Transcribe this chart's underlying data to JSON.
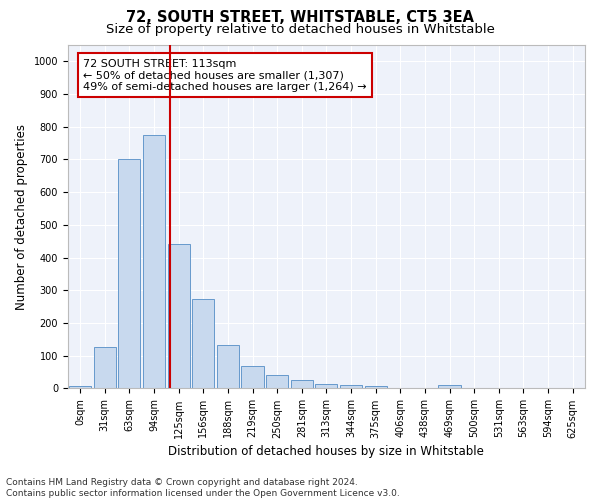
{
  "title": "72, SOUTH STREET, WHITSTABLE, CT5 3EA",
  "subtitle": "Size of property relative to detached houses in Whitstable",
  "xlabel": "Distribution of detached houses by size in Whitstable",
  "ylabel": "Number of detached properties",
  "bar_color": "#c8d9ee",
  "bar_edge_color": "#6699cc",
  "background_color": "#eef2fa",
  "grid_color": "#ffffff",
  "categories": [
    "0sqm",
    "31sqm",
    "63sqm",
    "94sqm",
    "125sqm",
    "156sqm",
    "188sqm",
    "219sqm",
    "250sqm",
    "281sqm",
    "313sqm",
    "344sqm",
    "375sqm",
    "406sqm",
    "438sqm",
    "469sqm",
    "500sqm",
    "531sqm",
    "563sqm",
    "594sqm",
    "625sqm"
  ],
  "values": [
    8,
    128,
    700,
    775,
    442,
    275,
    133,
    68,
    40,
    25,
    13,
    12,
    8,
    0,
    0,
    10,
    0,
    0,
    0,
    0,
    0
  ],
  "ylim": [
    0,
    1050
  ],
  "yticks": [
    0,
    100,
    200,
    300,
    400,
    500,
    600,
    700,
    800,
    900,
    1000
  ],
  "property_line_label": "72 SOUTH STREET: 113sqm",
  "annotation_line1": "← 50% of detached houses are smaller (1,307)",
  "annotation_line2": "49% of semi-detached houses are larger (1,264) →",
  "footer_line1": "Contains HM Land Registry data © Crown copyright and database right 2024.",
  "footer_line2": "Contains public sector information licensed under the Open Government Licence v3.0.",
  "title_fontsize": 10.5,
  "subtitle_fontsize": 9.5,
  "xlabel_fontsize": 8.5,
  "ylabel_fontsize": 8.5,
  "tick_fontsize": 7,
  "annotation_fontsize": 8,
  "footer_fontsize": 6.5
}
